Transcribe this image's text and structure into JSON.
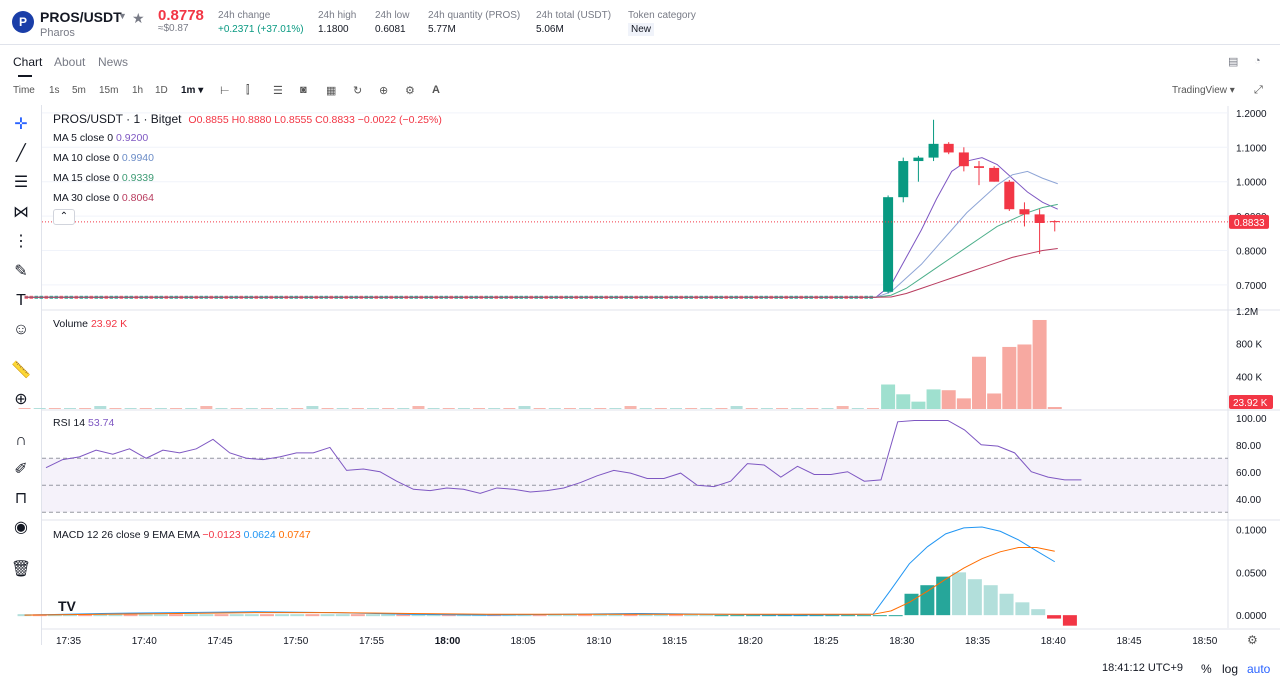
{
  "header": {
    "logo_letter": "P",
    "symbol": "PROS/USDT",
    "network": "Pharos",
    "price": "0.8778",
    "price_usd": "≈$0.87",
    "stats": [
      {
        "label": "24h change",
        "value": "+0.2371 (+37.01%)"
      },
      {
        "label": "24h high",
        "value": "1.1800"
      },
      {
        "label": "24h low",
        "value": "0.6081"
      },
      {
        "label": "24h quantity (PROS)",
        "value": "5.77M"
      },
      {
        "label": "24h total (USDT)",
        "value": "5.06M"
      },
      {
        "label": "Token category",
        "value": "New"
      }
    ],
    "colors": {
      "up": "#089981",
      "down": "#f23645",
      "accent": "#2962ff"
    }
  },
  "tabs": [
    "Chart",
    "About",
    "News"
  ],
  "toolbar": {
    "intervals": [
      "Time",
      "1s",
      "5m",
      "15m",
      "1h",
      "1D",
      "1m"
    ],
    "selected_interval": "1m",
    "icons": [
      "bar-style-icon",
      "candle-icon",
      "indicator-icon",
      "camera-icon",
      "calendar-icon",
      "replay-icon",
      "plus-circle-icon",
      "gear-icon",
      "text-ai-icon"
    ],
    "tradingview_label": "TradingView"
  },
  "left_tools": [
    "crosshair-icon",
    "trend-line-icon",
    "fib-icon",
    "pattern-icon",
    "measure-icon",
    "brush-icon",
    "text-icon",
    "emoji-icon",
    "ruler-icon",
    "zoom-icon",
    "magnet-icon",
    "pencil-lock-icon",
    "lock-icon",
    "eye-icon",
    "trash-icon"
  ],
  "legend": {
    "title": "PROS/USDT · 1 · Bitget",
    "ohlc": [
      {
        "k": "O",
        "v": "0.8855"
      },
      {
        "k": "H",
        "v": "0.8880"
      },
      {
        "k": "L",
        "v": "0.8555"
      },
      {
        "k": "C",
        "v": "0.8833"
      }
    ],
    "change": "−0.0022 (−0.25%)",
    "mas": [
      {
        "label": "MA 5 close 0",
        "value": "0.9200",
        "color": "#7e57c2"
      },
      {
        "label": "MA 10 close 0",
        "value": "0.9940",
        "color": "#8ea5d6"
      },
      {
        "label": "MA 15 close 0",
        "value": "0.9339",
        "color": "#4caf8a"
      },
      {
        "label": "MA 30 close 0",
        "value": "0.8064",
        "color": "#b83b5e"
      }
    ],
    "volume_label": "Volume",
    "volume_value": "23.92 K",
    "rsi_label": "RSI 14",
    "rsi_value": "53.74",
    "macd_label": "MACD 12 26 close 9 EMA EMA",
    "macd_values": [
      "−0.0123",
      "0.0624",
      "0.0747"
    ]
  },
  "chart_data": {
    "type": "candlestick",
    "interval": "1m",
    "x_time_labels": [
      "17:35",
      "17:40",
      "17:45",
      "17:50",
      "17:55",
      "18:00",
      "18:05",
      "18:10",
      "18:15",
      "18:20",
      "18:25",
      "18:30",
      "18:35",
      "18:40",
      "18:45",
      "18:50"
    ],
    "price_axis": [
      "1.2000",
      "1.1000",
      "1.0000",
      "0.9000",
      "0.8000",
      "0.7000"
    ],
    "price_ylim": [
      0.63,
      1.22
    ],
    "last_price_badge": "0.8833",
    "flat_region": {
      "from": "17:32",
      "to": "18:28",
      "level": 0.664
    },
    "candles": [
      {
        "t": "18:29",
        "o": 0.68,
        "h": 0.96,
        "l": 0.675,
        "c": 0.955
      },
      {
        "t": "18:30",
        "o": 0.955,
        "h": 1.07,
        "l": 0.94,
        "c": 1.06
      },
      {
        "t": "18:31",
        "o": 1.06,
        "h": 1.075,
        "l": 1.0,
        "c": 1.07
      },
      {
        "t": "18:32",
        "o": 1.07,
        "h": 1.18,
        "l": 1.06,
        "c": 1.11
      },
      {
        "t": "18:33",
        "o": 1.11,
        "h": 1.115,
        "l": 1.08,
        "c": 1.085
      },
      {
        "t": "18:34",
        "o": 1.085,
        "h": 1.1,
        "l": 1.03,
        "c": 1.045
      },
      {
        "t": "18:35",
        "o": 1.045,
        "h": 1.06,
        "l": 0.99,
        "c": 1.04
      },
      {
        "t": "18:36",
        "o": 1.04,
        "h": 1.045,
        "l": 1.0,
        "c": 1.0
      },
      {
        "t": "18:37",
        "o": 1.0,
        "h": 1.005,
        "l": 0.915,
        "c": 0.92
      },
      {
        "t": "18:38",
        "o": 0.92,
        "h": 0.94,
        "l": 0.87,
        "c": 0.905
      },
      {
        "t": "18:39",
        "o": 0.905,
        "h": 0.92,
        "l": 0.79,
        "c": 0.88
      },
      {
        "t": "18:40",
        "o": 0.8855,
        "h": 0.888,
        "l": 0.8555,
        "c": 0.8833
      }
    ],
    "ma_series": [
      {
        "name": "MA 5",
        "values": [
          0.664,
          0.7,
          0.78,
          0.86,
          0.95,
          1.03,
          1.06,
          1.07,
          1.05,
          1.01,
          0.97,
          0.94,
          0.92
        ]
      },
      {
        "name": "MA 10",
        "values": [
          0.664,
          0.68,
          0.72,
          0.76,
          0.81,
          0.86,
          0.91,
          0.95,
          0.99,
          1.02,
          1.03,
          1.01,
          0.994
        ]
      },
      {
        "name": "MA 15",
        "values": [
          0.664,
          0.67,
          0.69,
          0.72,
          0.75,
          0.78,
          0.81,
          0.84,
          0.87,
          0.89,
          0.91,
          0.925,
          0.934
        ]
      },
      {
        "name": "MA 30",
        "values": [
          0.664,
          0.665,
          0.675,
          0.69,
          0.705,
          0.72,
          0.735,
          0.75,
          0.765,
          0.78,
          0.79,
          0.8,
          0.806
        ]
      }
    ],
    "volume_axis": [
      "1.2M",
      "800 K",
      "400 K"
    ],
    "volume_badge": "23.92 K",
    "volume_ylim": [
      0,
      1200000
    ],
    "volume_bars": [
      {
        "t": "18:29",
        "v": 300000,
        "dir": "up"
      },
      {
        "t": "18:30",
        "v": 180000,
        "dir": "up"
      },
      {
        "t": "18:31",
        "v": 90000,
        "dir": "up"
      },
      {
        "t": "18:32",
        "v": 240000,
        "dir": "up"
      },
      {
        "t": "18:33",
        "v": 230000,
        "dir": "down"
      },
      {
        "t": "18:34",
        "v": 130000,
        "dir": "down"
      },
      {
        "t": "18:35",
        "v": 640000,
        "dir": "down"
      },
      {
        "t": "18:36",
        "v": 190000,
        "dir": "down"
      },
      {
        "t": "18:37",
        "v": 760000,
        "dir": "down"
      },
      {
        "t": "18:38",
        "v": 790000,
        "dir": "down"
      },
      {
        "t": "18:39",
        "v": 1090000,
        "dir": "down"
      },
      {
        "t": "18:40",
        "v": 24000,
        "dir": "down"
      }
    ],
    "rsi_axis": [
      "100.00",
      "80.00",
      "60.00",
      "40.00"
    ],
    "rsi_ylim": [
      25,
      105
    ],
    "rsi_bands": [
      70,
      50,
      30
    ],
    "rsi_values": [
      63,
      69,
      71,
      76,
      73,
      77,
      70,
      76,
      74,
      77,
      84,
      74,
      70,
      69,
      71,
      74,
      74,
      78,
      61,
      62,
      60,
      53,
      47,
      46,
      48,
      47,
      44,
      48,
      47,
      45,
      46,
      48,
      52,
      57,
      61,
      59,
      55,
      55,
      59,
      50,
      49,
      53,
      66,
      65,
      56,
      64,
      58,
      58,
      60,
      53,
      54,
      97,
      98,
      98,
      98,
      91,
      80,
      79,
      74,
      60,
      56,
      54,
      54
    ],
    "macd_axis": [
      "0.1000",
      "0.0500",
      "0.0000"
    ],
    "macd_ylim": [
      -0.015,
      0.11
    ],
    "macd_line": [
      0.0,
      0.002,
      0.003,
      0.004,
      0.003,
      0.001,
      0.0,
      0.001,
      0.002,
      0.001,
      0.0,
      0.001,
      0.03,
      0.06,
      0.08,
      0.095,
      0.102,
      0.103,
      0.098,
      0.088,
      0.075,
      0.0624
    ],
    "signal_line": [
      0.0,
      0.001,
      0.002,
      0.003,
      0.003,
      0.002,
      0.001,
      0.001,
      0.001,
      0.001,
      0.001,
      0.001,
      0.005,
      0.015,
      0.028,
      0.042,
      0.055,
      0.066,
      0.074,
      0.079,
      0.079,
      0.0747
    ],
    "macd_hist": [
      0.0,
      0.0,
      0.0,
      0.0,
      0.0,
      0.0,
      0.0,
      0.0,
      0.0,
      0.0,
      0.0,
      0.0,
      0.025,
      0.035,
      0.045,
      0.05,
      0.042,
      0.035,
      0.025,
      0.015,
      0.007,
      -0.004,
      -0.0123
    ]
  },
  "footer": {
    "clock": "18:41:12 UTC+9",
    "percent_label": "%",
    "log_label": "log",
    "auto_label": "auto"
  }
}
